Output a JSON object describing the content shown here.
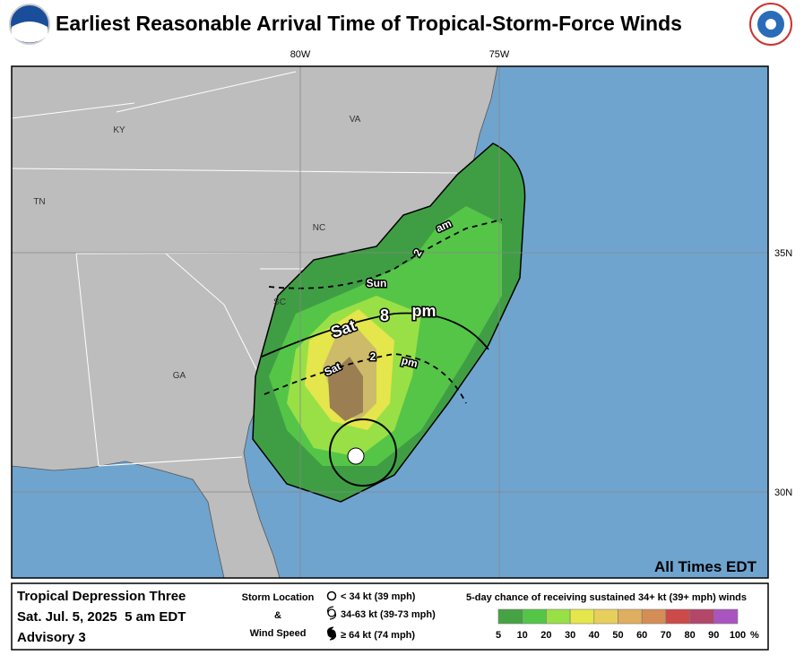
{
  "header": {
    "title": "Earliest Reasonable Arrival Time of Tropical-Storm-Force Winds"
  },
  "map": {
    "lon_labels": [
      "80W",
      "75W"
    ],
    "lat_labels": [
      "35N",
      "30N"
    ],
    "state_labels": [
      "KY",
      "VA",
      "TN",
      "NC",
      "SC",
      "GA"
    ],
    "time_labels": [
      {
        "day": "Sun",
        "hour": "2",
        "period": "am"
      },
      {
        "day": "Sat",
        "hour": "8",
        "period": "pm"
      },
      {
        "day": "Sat",
        "hour": "2",
        "period": "pm"
      }
    ],
    "note": "All Times EDT"
  },
  "info": {
    "storm": "Tropical Depression Three",
    "date": "Sat. Jul. 5, 2025  5 am EDT",
    "advisory": "Advisory 3"
  },
  "storm_legend": {
    "label1": "Storm Location",
    "label2": "&",
    "label3": "Wind Speed",
    "items": [
      "< 34 kt (39 mph)",
      "34-63 kt (39-73 mph)",
      "≥ 64 kt (74 mph)"
    ]
  },
  "scale": {
    "title": "5-day chance of receiving sustained 34+ kt (39+ mph) winds",
    "values": [
      5,
      10,
      20,
      30,
      40,
      50,
      60,
      70,
      80,
      90,
      100
    ],
    "unit": "%",
    "colors": [
      "#45a344",
      "#55c548",
      "#99e046",
      "#e4e64c",
      "#e7cf5c",
      "#dfae5e",
      "#d48e55",
      "#cc4a4a",
      "#b3476a",
      "#aa55bf"
    ]
  }
}
